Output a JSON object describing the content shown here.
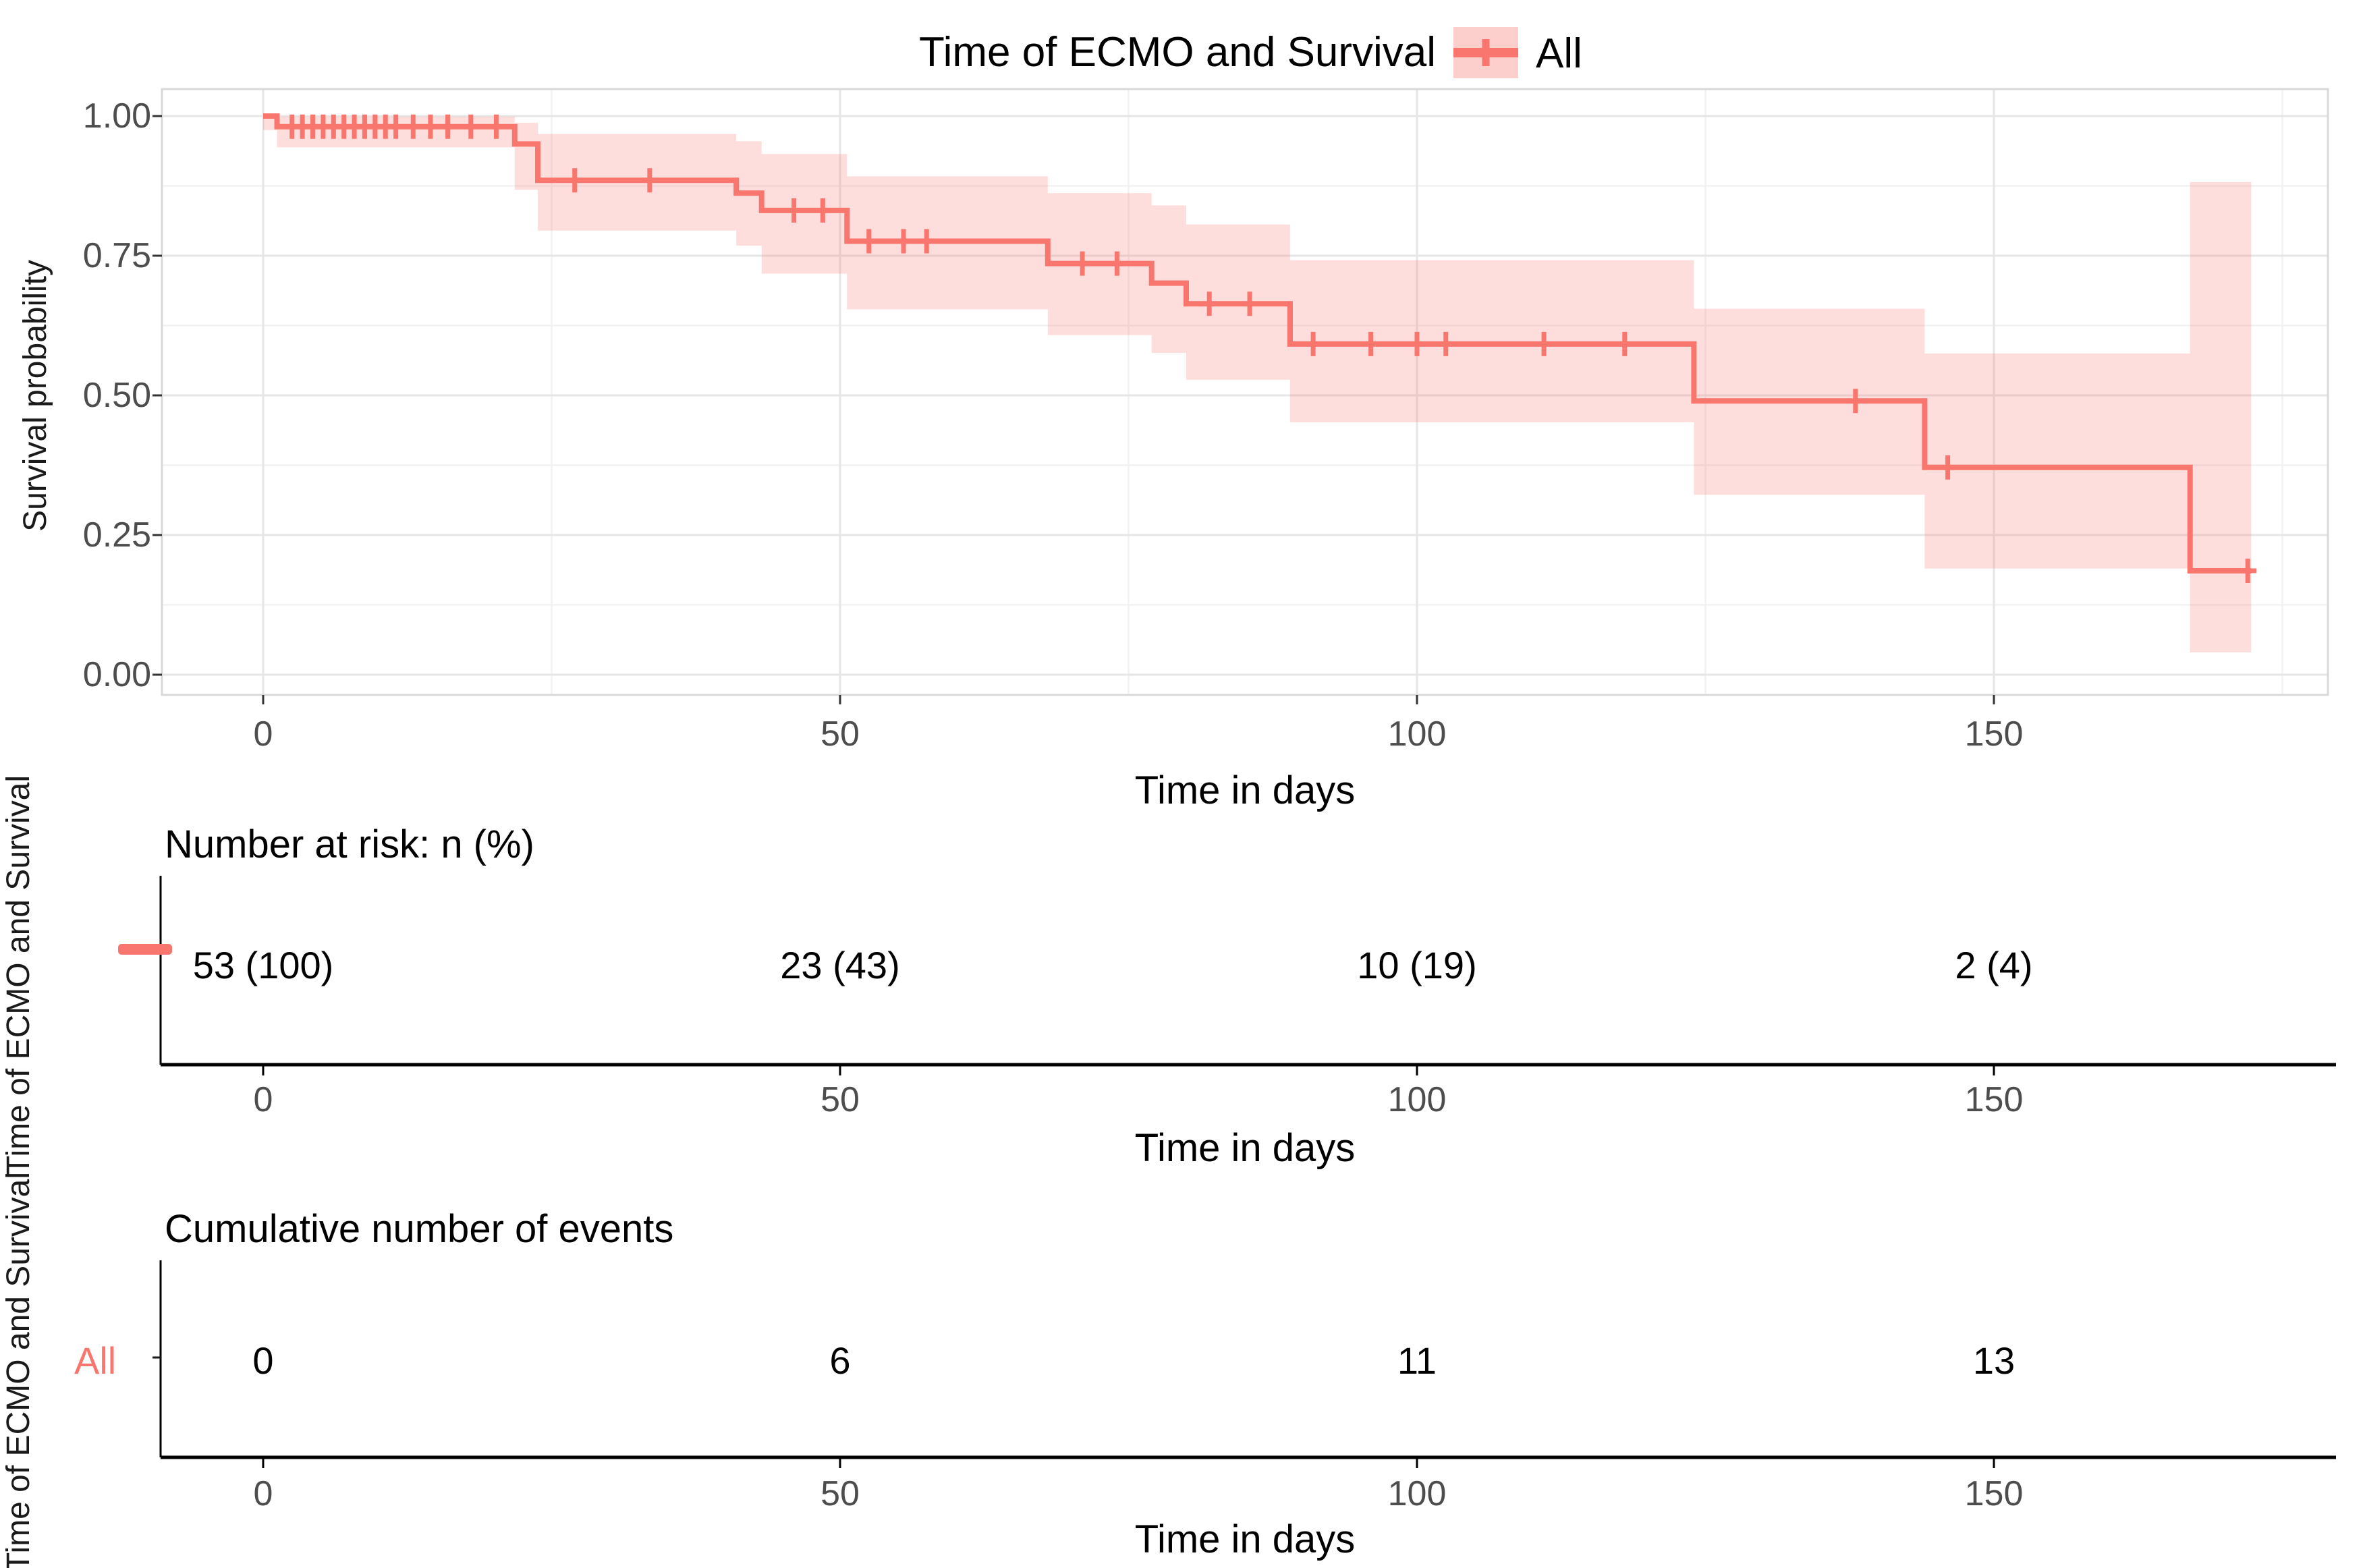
{
  "header": {
    "title": "Time of ECMO and Survival",
    "legend_label": "All"
  },
  "colors": {
    "line": "#F8766D",
    "ribbon": "rgba(248,118,109,0.24)",
    "grid_major": "#E6E6E6",
    "grid_minor": "#F2F2F2",
    "panel_border": "#D9D9D9",
    "tick_mark": "#333333",
    "axis_text": "#4D4D4D",
    "table_axis": "#000000"
  },
  "chart_data": {
    "type": "line",
    "subtype": "kaplan-meier-step",
    "title": "Time of ECMO and Survival",
    "legend": [
      "All"
    ],
    "legend_position": "top",
    "xlabel": "Time in days",
    "ylabel": "Survival probability",
    "xlim": [
      -9,
      179.5
    ],
    "ylim": [
      -0.04,
      1.04
    ],
    "x_ticks": [
      0,
      50,
      100,
      150
    ],
    "x_minor_ticks": [
      25,
      75,
      125,
      175
    ],
    "y_ticks": [
      1.0,
      0.75,
      0.5,
      0.25,
      0.0
    ],
    "y_tick_labels": [
      "1.00",
      "0.75",
      "0.50",
      "0.25",
      "0.00"
    ],
    "y_minor_ticks": [
      0.875,
      0.625,
      0.375,
      0.125
    ],
    "grid": true,
    "series": [
      {
        "name": "All",
        "color": "#F8766D",
        "steps": [
          [
            0,
            1.0
          ],
          [
            1.2,
            0.981
          ],
          [
            21.8,
            0.95
          ],
          [
            23.8,
            0.885
          ],
          [
            41,
            0.862
          ],
          [
            43.2,
            0.831
          ],
          [
            50.6,
            0.776
          ],
          [
            68,
            0.736
          ],
          [
            77,
            0.701
          ],
          [
            80,
            0.664
          ],
          [
            89,
            0.592
          ],
          [
            124,
            0.49
          ],
          [
            144,
            0.371
          ],
          [
            167,
            0.186
          ]
        ],
        "end_time": 172.3,
        "censor_marks": [
          [
            2.5,
            0.981
          ],
          [
            3.4,
            0.981
          ],
          [
            4.3,
            0.981
          ],
          [
            5.2,
            0.981
          ],
          [
            6.1,
            0.981
          ],
          [
            7,
            0.981
          ],
          [
            7.9,
            0.981
          ],
          [
            8.8,
            0.981
          ],
          [
            9.7,
            0.981
          ],
          [
            10.6,
            0.981
          ],
          [
            11.5,
            0.981
          ],
          [
            13,
            0.981
          ],
          [
            14.5,
            0.981
          ],
          [
            16,
            0.981
          ],
          [
            18,
            0.981
          ],
          [
            20.2,
            0.981
          ],
          [
            27,
            0.885
          ],
          [
            33.5,
            0.885
          ],
          [
            46,
            0.831
          ],
          [
            48.5,
            0.831
          ],
          [
            52.5,
            0.776
          ],
          [
            55.5,
            0.776
          ],
          [
            57.5,
            0.776
          ],
          [
            71,
            0.736
          ],
          [
            74,
            0.736
          ],
          [
            82,
            0.664
          ],
          [
            85.5,
            0.664
          ],
          [
            91,
            0.592
          ],
          [
            96,
            0.592
          ],
          [
            100,
            0.592
          ],
          [
            102.5,
            0.592
          ],
          [
            111,
            0.592
          ],
          [
            118,
            0.592
          ],
          [
            138,
            0.49
          ],
          [
            146,
            0.371
          ],
          [
            172,
            0.186
          ]
        ],
        "confidence_band": [
          [
            0,
            1.2,
            1.0,
            0.975
          ],
          [
            1.2,
            21.8,
            0.999,
            0.944
          ],
          [
            21.8,
            23.8,
            0.988,
            0.868
          ],
          [
            23.8,
            41,
            0.968,
            0.795
          ],
          [
            41,
            43.2,
            0.955,
            0.768
          ],
          [
            43.2,
            50.6,
            0.932,
            0.718
          ],
          [
            50.6,
            68,
            0.892,
            0.654
          ],
          [
            68,
            77,
            0.862,
            0.608
          ],
          [
            77,
            80,
            0.84,
            0.576
          ],
          [
            80,
            89,
            0.806,
            0.528
          ],
          [
            89,
            124,
            0.742,
            0.452
          ],
          [
            124,
            144,
            0.655,
            0.322
          ],
          [
            144,
            167,
            0.575,
            0.19
          ],
          [
            167,
            172.3,
            0.882,
            0.04
          ]
        ]
      }
    ]
  },
  "risk_table": {
    "title": "Number at risk: n (%)",
    "axis_label": "Time in days",
    "side_label": "Time of ECMO and Survival",
    "times": [
      0,
      50,
      100,
      150
    ],
    "tick_labels": [
      "0",
      "50",
      "100",
      "150"
    ],
    "values": [
      "53 (100)",
      "23 (43)",
      "10 (19)",
      "2 (4)"
    ],
    "group_marker_color": "#F8766D"
  },
  "events_table": {
    "title": "Cumulative number of events",
    "axis_label": "Time in days",
    "side_label": "Time of ECMO and Survival",
    "group": "All",
    "times": [
      0,
      50,
      100,
      150
    ],
    "tick_labels": [
      "0",
      "50",
      "100",
      "150"
    ],
    "values": [
      "0",
      "6",
      "11",
      "13"
    ]
  }
}
